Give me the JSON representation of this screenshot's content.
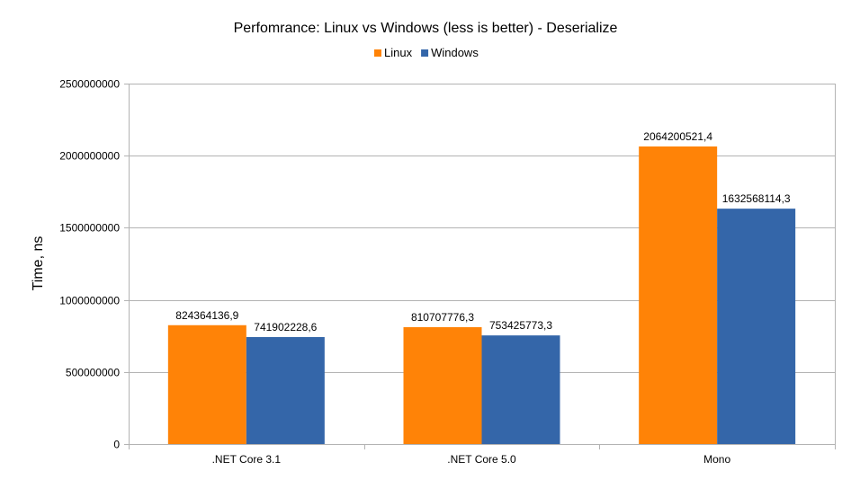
{
  "chart_data": {
    "type": "bar",
    "title": "Perfomrance: Linux vs Windows (less is better) - Deserialize",
    "xlabel": "",
    "ylabel": "Time, ns",
    "categories": [
      ".NET Core 3.1",
      ".NET Core 5.0",
      "Mono"
    ],
    "series": [
      {
        "name": "Linux",
        "color": "#ff8307",
        "values": [
          824364136.9,
          810707776.3,
          2064200521.4
        ],
        "labels": [
          "824364136,9",
          "810707776,3",
          "2064200521,4"
        ]
      },
      {
        "name": "Windows",
        "color": "#3466a9",
        "values": [
          741902228.6,
          753425773.3,
          1632568114.3
        ],
        "labels": [
          "741902228,6",
          "753425773,3",
          "1632568114,3"
        ]
      }
    ],
    "ylim": [
      0,
      2500000000
    ],
    "yticks": [
      0,
      500000000,
      1000000000,
      1500000000,
      2000000000,
      2500000000
    ],
    "ytick_labels": [
      "0",
      "500000000",
      "1000000000",
      "1500000000",
      "2000000000",
      "2500000000"
    ],
    "grid": true,
    "legend_position": "top-center"
  }
}
